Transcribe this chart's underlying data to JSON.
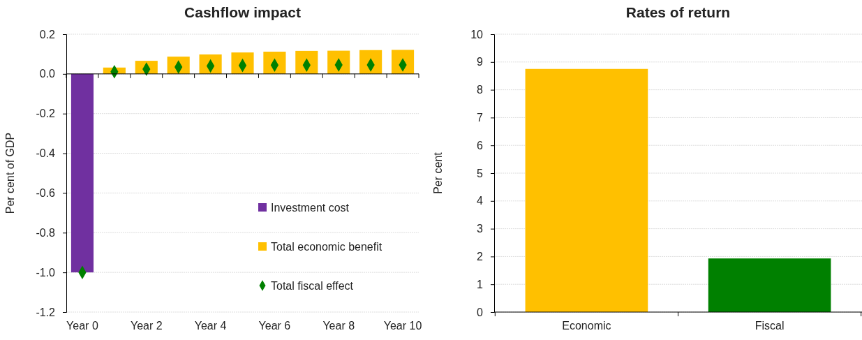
{
  "chart_data": [
    {
      "type": "bar",
      "title": "Cashflow impact",
      "ylabel": "Per cent of GDP",
      "categories": [
        "Year 0",
        null,
        "Year 2",
        null,
        "Year 4",
        null,
        "Year 6",
        null,
        "Year 8",
        null,
        "Year 10"
      ],
      "series": [
        {
          "name": "Investment cost",
          "color": "#7030a0",
          "values": [
            -1.0,
            null,
            null,
            null,
            null,
            null,
            null,
            null,
            null,
            null,
            null
          ]
        },
        {
          "name": "Total economic benefit",
          "color": "#ffc000",
          "values": [
            null,
            0.032,
            0.066,
            0.087,
            0.098,
            0.108,
            0.112,
            0.116,
            0.117,
            0.12,
            0.121
          ]
        },
        {
          "name": "Total fiscal effect",
          "type": "scatter",
          "marker": "diamond",
          "color": "#008000",
          "values": [
            -1.0,
            0.011,
            0.024,
            0.035,
            0.04,
            0.043,
            0.044,
            0.044,
            0.045,
            0.045,
            0.045
          ]
        }
      ],
      "ylim": [
        -1.2,
        0.2
      ],
      "yticks": [
        {
          "value": -1.2,
          "label": "-1.2"
        },
        {
          "value": -1,
          "label": "-1.0"
        },
        {
          "value": -0.8,
          "label": "-0.8"
        },
        {
          "value": -0.6,
          "label": "-0.6"
        },
        {
          "value": -0.4,
          "label": "-0.4"
        },
        {
          "value": -0.2,
          "label": "-0.2"
        },
        {
          "value": 0,
          "label": "0.0"
        },
        {
          "value": 0.2,
          "label": "0.2"
        }
      ],
      "grid": "y",
      "legend": "bottom right"
    },
    {
      "type": "bar",
      "title": "Rates of return",
      "ylabel": "Per cent",
      "categories": [
        "Economic",
        "Fiscal"
      ],
      "values": [
        8.75,
        1.93
      ],
      "colors": [
        "#ffc000",
        "#008000"
      ],
      "ylim": [
        0,
        10
      ],
      "yticks": [
        0,
        1,
        2,
        3,
        4,
        5,
        6,
        7,
        8,
        9,
        10
      ],
      "grid": "y"
    }
  ]
}
